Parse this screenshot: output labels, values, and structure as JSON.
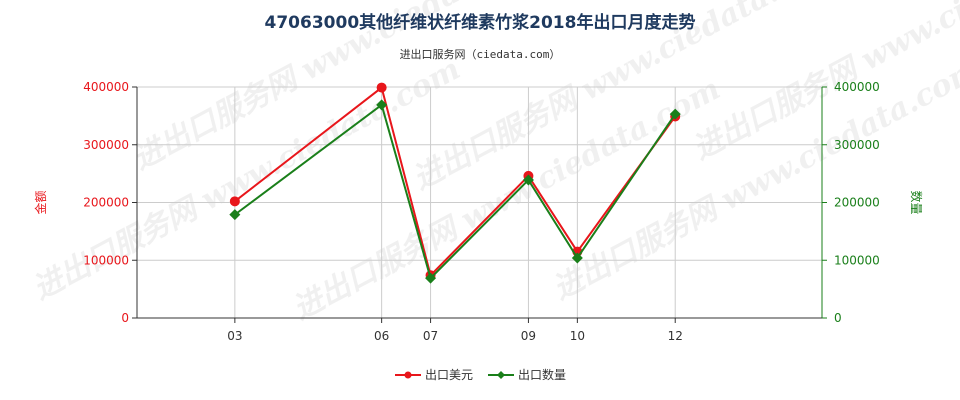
{
  "title": "47063000其他纤维状纤维素竹浆2018年出口月度走势",
  "subtitle": "进出口服务网（ciedata.com）",
  "watermark": "进出口服务网 www.ciedata.com",
  "colors": {
    "series_1": "#e8161b",
    "series_2": "#1a7f1a",
    "grid": "#cccccc",
    "axis": "#333333",
    "title": "#1f3a5f"
  },
  "chart_data": {
    "type": "line",
    "title": "47063000其他纤维状纤维素竹浆2018年出口月度走势",
    "x": [
      "03",
      "06",
      "07",
      "09",
      "10",
      "12"
    ],
    "x_positions": [
      3,
      6,
      7,
      9,
      10,
      12
    ],
    "xlim": [
      1,
      15
    ],
    "ylabel_left": "金额",
    "ylabel_right": "数量",
    "ylim_left": [
      0,
      400000
    ],
    "ylim_right": [
      0,
      400000
    ],
    "yticks_left": [
      "0",
      "100000",
      "200000",
      "300000",
      "400000"
    ],
    "yticks_right": [
      "0",
      "100000",
      "200000",
      "300000",
      "400000"
    ],
    "grid": true,
    "legend_position": "bottom-center",
    "series": [
      {
        "name": "出口美元",
        "axis": "left",
        "marker": "circle",
        "values": [
          202000,
          399000,
          74000,
          246000,
          115000,
          349000
        ]
      },
      {
        "name": "出口数量",
        "axis": "right",
        "marker": "diamond",
        "values": [
          179000,
          369000,
          69000,
          239000,
          104000,
          353000
        ]
      }
    ]
  }
}
